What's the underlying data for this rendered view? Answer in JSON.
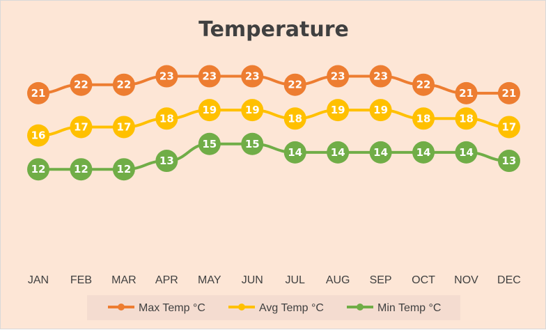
{
  "chart_data": {
    "type": "line",
    "title": "Temperature",
    "categories": [
      "JAN",
      "FEB",
      "MAR",
      "APR",
      "MAY",
      "JUN",
      "JUL",
      "AUG",
      "SEP",
      "OCT",
      "NOV",
      "DEC"
    ],
    "ylim": [
      0,
      25
    ],
    "grid": false,
    "legend_position": "bottom",
    "series": [
      {
        "name": "Max Temp °C",
        "color": "#ed7d31",
        "values": [
          21,
          22,
          22,
          23,
          23,
          23,
          22,
          23,
          23,
          22,
          21,
          21
        ]
      },
      {
        "name": "Avg Temp °C",
        "color": "#ffc000",
        "values": [
          16,
          17,
          17,
          18,
          19,
          19,
          18,
          19,
          19,
          18,
          18,
          17
        ]
      },
      {
        "name": "Min Temp °C",
        "color": "#70ad47",
        "values": [
          12,
          12,
          12,
          13,
          15,
          15,
          14,
          14,
          14,
          14,
          14,
          13
        ]
      }
    ],
    "background": "#fde6d6",
    "legend_background": "#f4dcd0"
  }
}
